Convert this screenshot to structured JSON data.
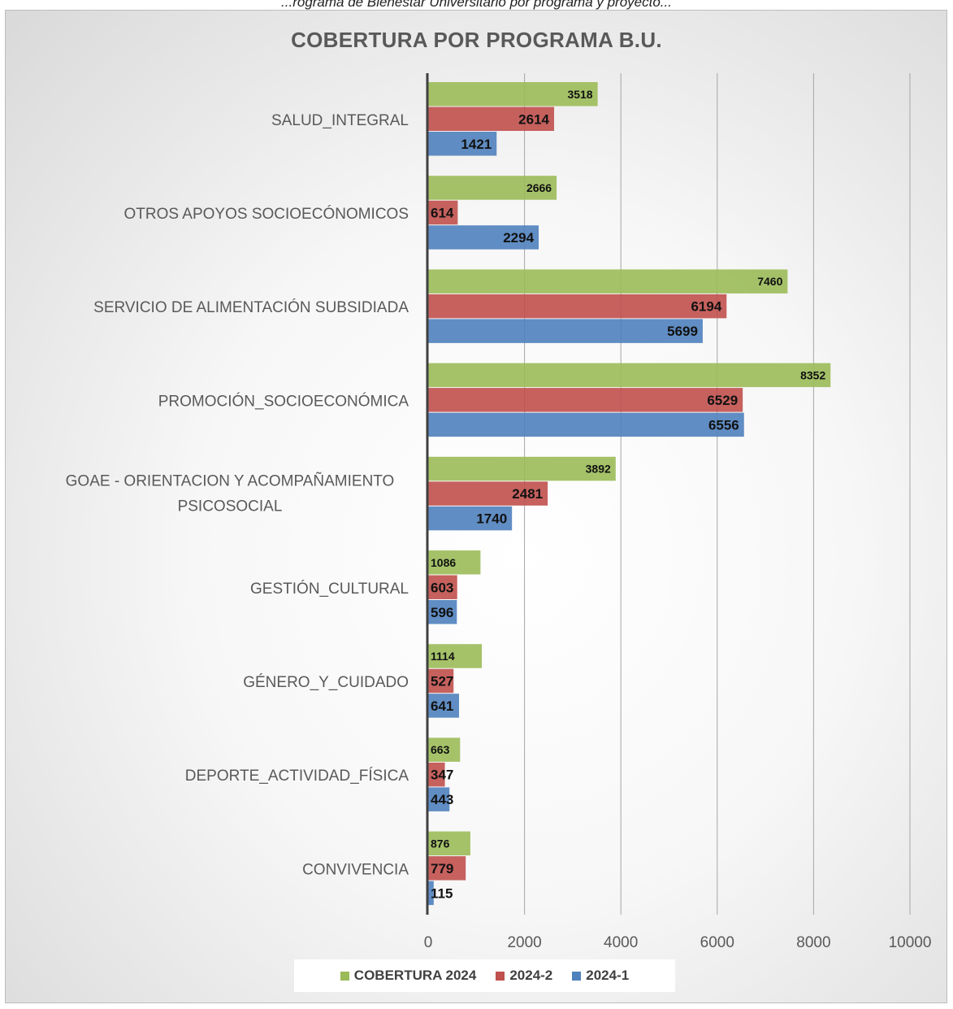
{
  "caption": "...rograma de Bienestar Universitario por programa y proyecto...",
  "chart_data": {
    "type": "bar",
    "orientation": "horizontal",
    "title": "COBERTURA POR PROGRAMA B.U.",
    "xlim": [
      0,
      10000
    ],
    "x_ticks": [
      0,
      2000,
      4000,
      6000,
      8000,
      10000
    ],
    "grid": "vertical",
    "legend_position": "bottom",
    "categories": [
      "SALUD_INTEGRAL",
      "OTROS APOYOS SOCIOECÓNOMICOS",
      "SERVICIO DE ALIMENTACIÓN SUBSIDIADA",
      "PROMOCIÓN_SOCIOECONÓMICA",
      "GOAE - ORIENTACION Y ACOMPAÑAMIENTO PSICOSOCIAL",
      "GESTIÓN_CULTURAL",
      "GÉNERO_Y_CUIDADO",
      "DEPORTE_ACTIVIDAD_FÍSICA",
      "CONVIVENCIA"
    ],
    "series": [
      {
        "name": "COBERTURA 2024",
        "color": "#9bbb59",
        "values": [
          3518,
          2666,
          7460,
          8352,
          3892,
          1086,
          1114,
          663,
          876
        ]
      },
      {
        "name": "2024-2",
        "color": "#c0504d",
        "values": [
          2614,
          614,
          6194,
          6529,
          2481,
          603,
          527,
          347,
          779
        ]
      },
      {
        "name": "2024-1",
        "color": "#4f81bd",
        "values": [
          1421,
          2294,
          5699,
          6556,
          1740,
          596,
          641,
          443,
          115
        ]
      }
    ]
  }
}
